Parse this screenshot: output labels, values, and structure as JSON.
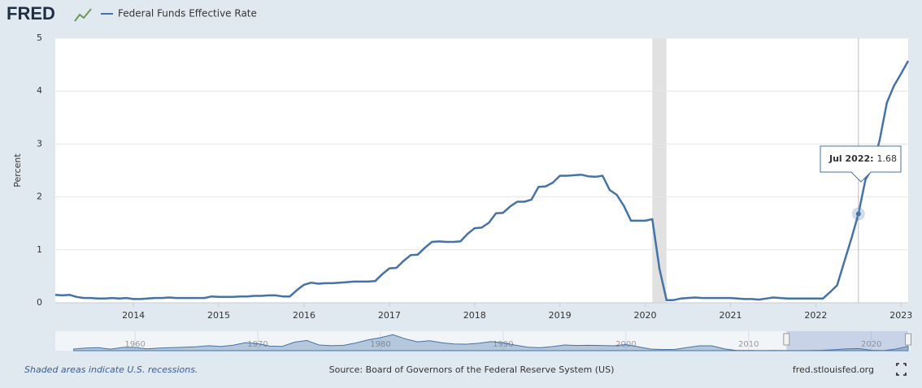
{
  "logo": "FRED",
  "chart_data": {
    "type": "line",
    "series": [
      {
        "name": "Federal Funds Effective Rate",
        "color": "#4572a7",
        "values": [
          0.15,
          0.14,
          0.15,
          0.11,
          0.09,
          0.09,
          0.08,
          0.08,
          0.09,
          0.08,
          0.09,
          0.07,
          0.07,
          0.08,
          0.09,
          0.09,
          0.1,
          0.09,
          0.09,
          0.09,
          0.09,
          0.09,
          0.12,
          0.11,
          0.11,
          0.11,
          0.12,
          0.12,
          0.13,
          0.13,
          0.14,
          0.14,
          0.12,
          0.12,
          0.24,
          0.34,
          0.38,
          0.36,
          0.37,
          0.37,
          0.38,
          0.39,
          0.4,
          0.4,
          0.4,
          0.41,
          0.54,
          0.65,
          0.66,
          0.79,
          0.9,
          0.91,
          1.04,
          1.15,
          1.16,
          1.15,
          1.15,
          1.16,
          1.3,
          1.41,
          1.42,
          1.51,
          1.69,
          1.7,
          1.82,
          1.91,
          1.91,
          1.95,
          2.19,
          2.2,
          2.27,
          2.4,
          2.4,
          2.41,
          2.42,
          2.39,
          2.38,
          2.4,
          2.13,
          2.04,
          1.83,
          1.55,
          1.55,
          1.55,
          1.58,
          0.65,
          0.05,
          0.05,
          0.08,
          0.09,
          0.1,
          0.09,
          0.09,
          0.09,
          0.09,
          0.09,
          0.08,
          0.07,
          0.07,
          0.06,
          0.08,
          0.1,
          0.09,
          0.08,
          0.08,
          0.08,
          0.08,
          0.08,
          0.08,
          0.2,
          0.33,
          0.77,
          1.21,
          1.68,
          2.33,
          2.56,
          3.08,
          3.78,
          4.1,
          4.33,
          4.57
        ]
      }
    ],
    "xlim": [
      "2013-02",
      "2023-02"
    ],
    "xticks": [
      {
        "value": "2014-01",
        "label": "2014"
      },
      {
        "value": "2015-01",
        "label": "2015"
      },
      {
        "value": "2016-01",
        "label": "2016"
      },
      {
        "value": "2017-01",
        "label": "2017"
      },
      {
        "value": "2018-01",
        "label": "2018"
      },
      {
        "value": "2019-01",
        "label": "2019"
      },
      {
        "value": "2020-01",
        "label": "2020"
      },
      {
        "value": "2021-01",
        "label": "2021"
      },
      {
        "value": "2022-01",
        "label": "2022"
      },
      {
        "value": "2023-01",
        "label": "2023"
      }
    ],
    "ylim": [
      0,
      5
    ],
    "yticks": [
      0,
      1,
      2,
      3,
      4,
      5
    ],
    "grid": true,
    "ylabel": "Percent",
    "recessions": [
      [
        "2020-02",
        "2020-04"
      ]
    ],
    "tooltip": {
      "label": "Jul 2022:",
      "x": "2022-07"
    },
    "navigator": {
      "x": [
        1955,
        1956,
        1957,
        1958,
        1959,
        1960,
        1961,
        1962,
        1963,
        1964,
        1965,
        1966,
        1967,
        1968,
        1969,
        1970,
        1971,
        1972,
        1973,
        1974,
        1975,
        1976,
        1977,
        1978,
        1979,
        1980,
        1981,
        1982,
        1983,
        1984,
        1985,
        1986,
        1987,
        1988,
        1989,
        1990,
        1991,
        1992,
        1993,
        1994,
        1995,
        1996,
        1997,
        1998,
        1999,
        2000,
        2001,
        2002,
        2003,
        2004,
        2005,
        2006,
        2007,
        2008,
        2009,
        2010,
        2011,
        2012,
        2013,
        2014,
        2015,
        2016,
        2017,
        2018,
        2019,
        2020,
        2021,
        2022,
        2023
      ],
      "values": [
        1.78,
        2.73,
        3.11,
        1.57,
        3.31,
        3.21,
        1.95,
        2.71,
        3.18,
        3.5,
        4.07,
        5.11,
        4.22,
        5.66,
        8.21,
        7.17,
        4.67,
        4.44,
        8.74,
        10.51,
        5.82,
        5.05,
        5.54,
        7.94,
        11.2,
        13.35,
        16.39,
        12.24,
        9.09,
        10.23,
        8.1,
        6.8,
        6.66,
        7.57,
        9.21,
        8.1,
        5.69,
        3.52,
        3.02,
        4.2,
        5.84,
        5.3,
        5.46,
        5.35,
        4.97,
        6.24,
        3.88,
        1.67,
        1.13,
        1.35,
        3.22,
        4.97,
        5.02,
        1.92,
        0.16,
        0.18,
        0.1,
        0.14,
        0.11,
        0.09,
        0.13,
        0.4,
        1.0,
        1.83,
        2.16,
        0.38,
        0.08,
        1.68,
        4.5
      ],
      "xlim": [
        1953.5,
        2023.2
      ],
      "ylim": [
        0,
        20
      ],
      "xticks": [
        1960,
        1970,
        1980,
        1990,
        2000,
        2010,
        2020
      ]
    }
  },
  "footer": {
    "note": "Shaded areas indicate U.S. recessions.",
    "source": "Source: Board of Governors of the Federal Reserve System (US)",
    "site": "fred.stlouisfed.org"
  }
}
